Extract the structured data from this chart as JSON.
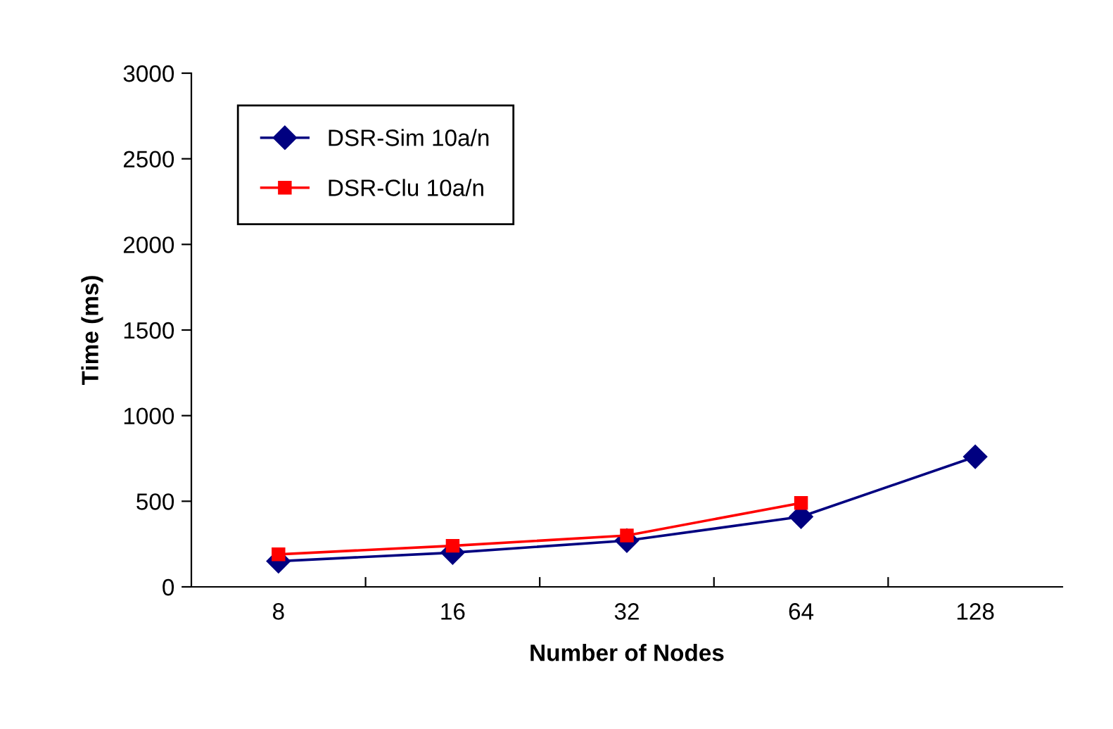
{
  "chart_data": {
    "type": "line",
    "xlabel": "Number of Nodes",
    "ylabel": "Time (ms)",
    "categories": [
      "8",
      "16",
      "32",
      "64",
      "128"
    ],
    "series": [
      {
        "name": "DSR-Sim 10a/n",
        "color": "#000080",
        "marker": "diamond",
        "values": [
          150,
          200,
          270,
          410,
          760
        ]
      },
      {
        "name": "DSR-Clu 10a/n",
        "color": "#ff0000",
        "marker": "square",
        "values": [
          190,
          240,
          300,
          490,
          null
        ]
      }
    ],
    "ylim": [
      0,
      3000
    ],
    "yticks": [
      0,
      500,
      1000,
      1500,
      2000,
      2500,
      3000
    ],
    "grid": false,
    "legend": "top left",
    "line_style": "solid"
  }
}
